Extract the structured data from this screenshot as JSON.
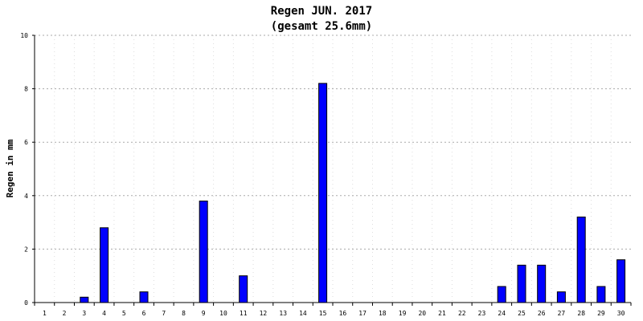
{
  "chart_data": {
    "type": "bar",
    "title": "Regen JUN. 2017",
    "subtitle": "(gesamt 25.6mm)",
    "xlabel": "",
    "ylabel": "Regen in mm",
    "ylim": [
      0,
      10
    ],
    "yticks": [
      "0",
      "2",
      "4",
      "6",
      "8",
      "10"
    ],
    "categories": [
      "1",
      "2",
      "3",
      "4",
      "5",
      "6",
      "7",
      "8",
      "9",
      "10",
      "11",
      "12",
      "13",
      "14",
      "15",
      "16",
      "17",
      "18",
      "19",
      "20",
      "21",
      "22",
      "23",
      "24",
      "25",
      "26",
      "27",
      "28",
      "29",
      "30"
    ],
    "values": [
      0,
      0,
      0.2,
      2.8,
      0,
      0.4,
      0,
      0,
      3.8,
      0,
      1.0,
      0,
      0,
      0,
      8.2,
      0,
      0,
      0,
      0,
      0,
      0,
      0,
      0,
      0.6,
      1.4,
      1.4,
      0.4,
      3.2,
      0.6,
      1.6
    ],
    "grid": true,
    "bar_color": "#0000ff"
  }
}
